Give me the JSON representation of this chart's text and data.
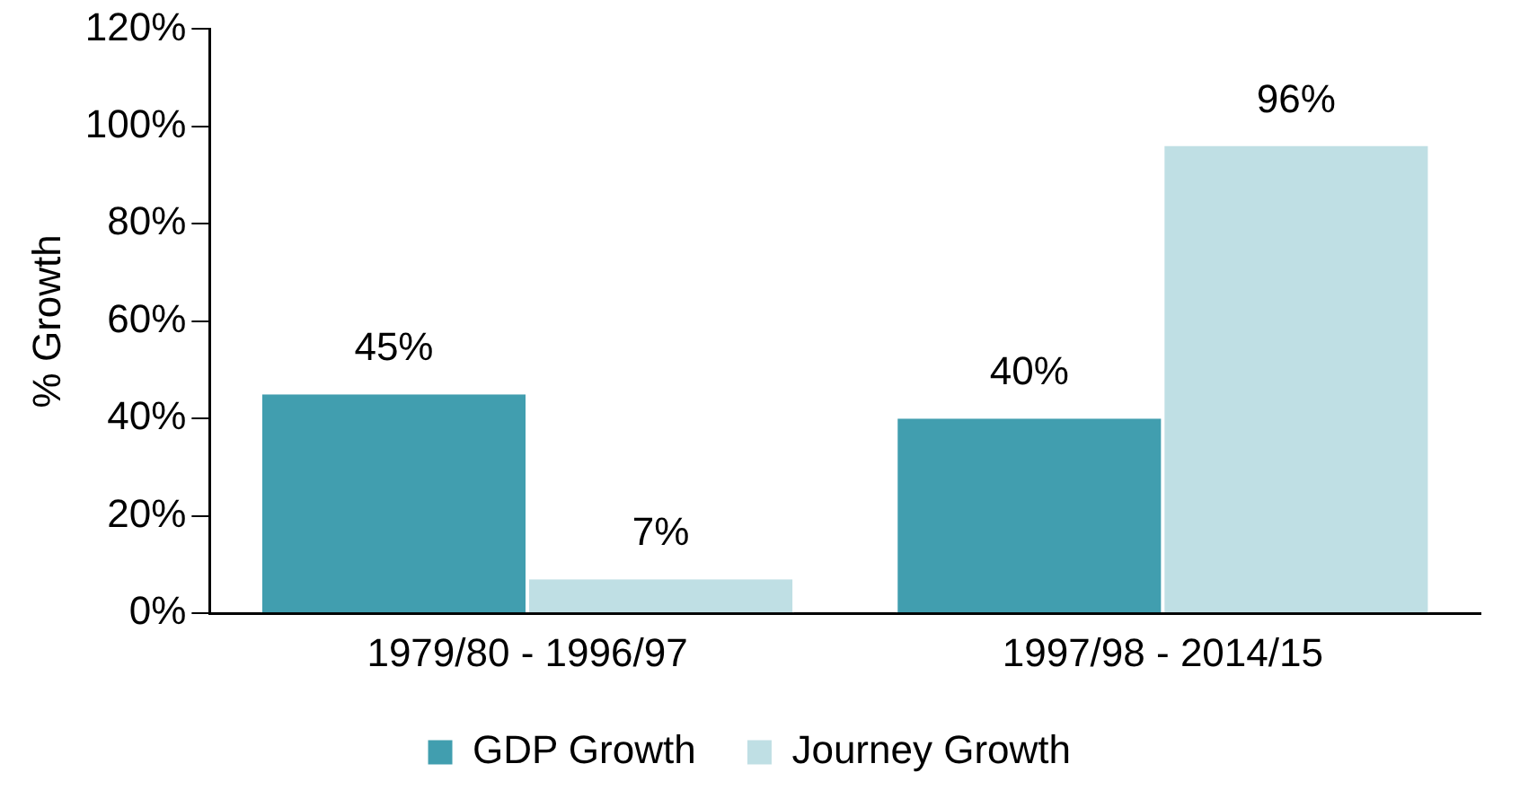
{
  "chart_data": {
    "type": "bar",
    "ylabel": "% Growth",
    "categories": [
      "1979/80 - 1996/97",
      "1997/98 - 2014/15"
    ],
    "series": [
      {
        "name": "GDP Growth",
        "color": "#419eaf",
        "values": [
          45,
          40
        ],
        "value_labels": [
          "45%",
          "40%"
        ]
      },
      {
        "name": "Journey Growth",
        "color": "#bfdfe4",
        "values": [
          7,
          96
        ],
        "value_labels": [
          "7%",
          "96%"
        ]
      }
    ],
    "ylim": [
      0,
      120
    ],
    "yticks": [
      {
        "value": 0,
        "label": "0%"
      },
      {
        "value": 20,
        "label": "20%"
      },
      {
        "value": 40,
        "label": "40%"
      },
      {
        "value": 60,
        "label": "60%"
      },
      {
        "value": 80,
        "label": "80%"
      },
      {
        "value": 100,
        "label": "100%"
      },
      {
        "value": 120,
        "label": "120%"
      }
    ],
    "grid": false,
    "legend": "bottom"
  }
}
